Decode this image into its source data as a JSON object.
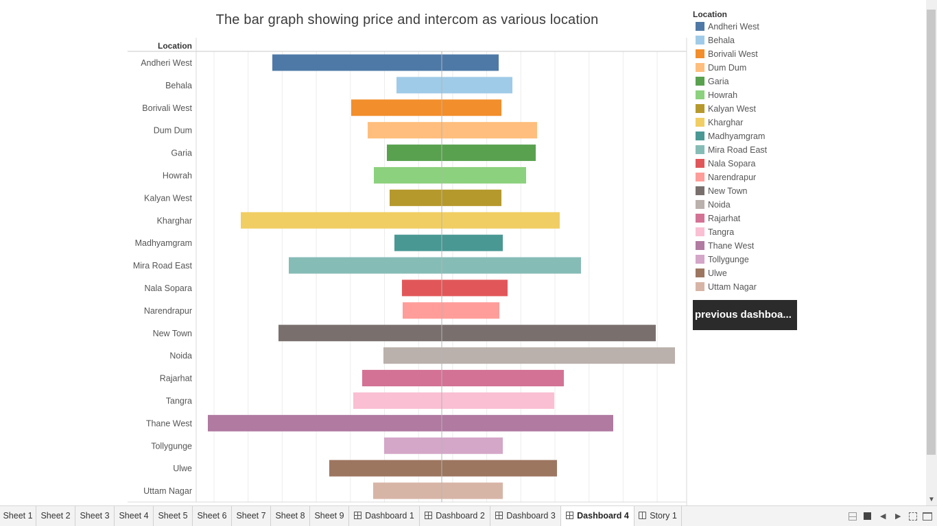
{
  "title": "The bar graph showing price and intercom as various location",
  "chart_data": {
    "type": "bar",
    "orientation": "horizontal-diverging",
    "row_header": "Location",
    "categories": [
      "Andheri West",
      "Behala",
      "Borivali West",
      "Dum Dum",
      "Garia",
      "Howrah",
      "Kalyan West",
      "Kharghar",
      "Madhyamgram",
      "Mira Road East",
      "Nala Sopara",
      "Narendrapur",
      "New Town",
      "Noida",
      "Rajarhat",
      "Tangra",
      "Thane West",
      "Tollygunge",
      "Ulwe",
      "Uttam Nagar"
    ],
    "series": [
      {
        "side": "left",
        "values": [
          247,
          66,
          132,
          108,
          80,
          99,
          76,
          293,
          69,
          223,
          58,
          57,
          238,
          85,
          116,
          129,
          341,
          84,
          164,
          100
        ]
      },
      {
        "side": "right",
        "values": [
          83,
          103,
          87,
          139,
          137,
          123,
          87,
          172,
          89,
          203,
          96,
          84,
          312,
          340,
          178,
          164,
          250,
          89,
          168,
          89
        ]
      }
    ],
    "colors": [
      "#4e79a7",
      "#a0cbe8",
      "#f28e2b",
      "#ffbe7d",
      "#59a14f",
      "#8cd17d",
      "#b6992d",
      "#f1ce63",
      "#499894",
      "#86bcb6",
      "#e15759",
      "#ff9d9a",
      "#79706e",
      "#bab0ac",
      "#d37295",
      "#fabfd2",
      "#b07aa1",
      "#d4a6c8",
      "#9d7660",
      "#d7b5a6"
    ],
    "grid": true,
    "legend_position": "right"
  },
  "legend": {
    "title": "Location",
    "items": [
      {
        "label": "Andheri West",
        "color": "#4e79a7"
      },
      {
        "label": "Behala",
        "color": "#a0cbe8"
      },
      {
        "label": "Borivali West",
        "color": "#f28e2b"
      },
      {
        "label": "Dum Dum",
        "color": "#ffbe7d"
      },
      {
        "label": "Garia",
        "color": "#59a14f"
      },
      {
        "label": "Howrah",
        "color": "#8cd17d"
      },
      {
        "label": "Kalyan West",
        "color": "#b6992d"
      },
      {
        "label": "Kharghar",
        "color": "#f1ce63"
      },
      {
        "label": "Madhyamgram",
        "color": "#499894"
      },
      {
        "label": "Mira Road East",
        "color": "#86bcb6"
      },
      {
        "label": "Nala Sopara",
        "color": "#e15759"
      },
      {
        "label": "Narendrapur",
        "color": "#ff9d9a"
      },
      {
        "label": "New Town",
        "color": "#79706e"
      },
      {
        "label": "Noida",
        "color": "#bab0ac"
      },
      {
        "label": "Rajarhat",
        "color": "#d37295"
      },
      {
        "label": "Tangra",
        "color": "#fabfd2"
      },
      {
        "label": "Thane West",
        "color": "#b07aa1"
      },
      {
        "label": "Tollygunge",
        "color": "#d4a6c8"
      },
      {
        "label": "Ulwe",
        "color": "#9d7660"
      },
      {
        "label": "Uttam Nagar",
        "color": "#d7b5a6"
      }
    ]
  },
  "button": {
    "label": "previous dashboa..."
  },
  "tabs": [
    {
      "label": "Sheet 1",
      "icon": "",
      "active": false
    },
    {
      "label": "Sheet 2",
      "icon": "",
      "active": false
    },
    {
      "label": "Sheet 3",
      "icon": "",
      "active": false
    },
    {
      "label": "Sheet 4",
      "icon": "",
      "active": false
    },
    {
      "label": "Sheet 5",
      "icon": "",
      "active": false
    },
    {
      "label": "Sheet 6",
      "icon": "",
      "active": false
    },
    {
      "label": "Sheet 7",
      "icon": "",
      "active": false
    },
    {
      "label": "Sheet 8",
      "icon": "",
      "active": false
    },
    {
      "label": "Sheet 9",
      "icon": "",
      "active": false
    },
    {
      "label": "Dashboard 1",
      "icon": "dashboard-icon",
      "active": false
    },
    {
      "label": "Dashboard 2",
      "icon": "dashboard-icon",
      "active": false
    },
    {
      "label": "Dashboard 3",
      "icon": "dashboard-icon",
      "active": false
    },
    {
      "label": "Dashboard 4",
      "icon": "dashboard-icon",
      "active": true
    },
    {
      "label": "Story 1",
      "icon": "story-icon",
      "active": false
    }
  ],
  "controls": {
    "prev_glyph": "◀",
    "next_glyph": "▶",
    "scroll_down_glyph": "▼"
  }
}
